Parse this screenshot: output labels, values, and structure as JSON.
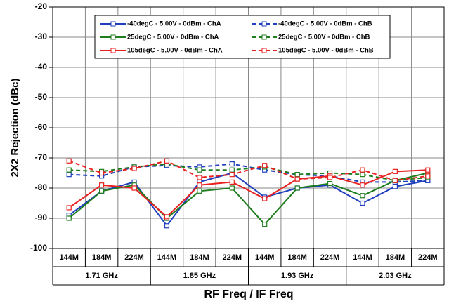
{
  "chart_data": {
    "type": "line",
    "y_label": "2X2 Rejection (dBc)",
    "x_label": "RF Freq / IF Freq",
    "categories": [
      "144M",
      "184M",
      "224M",
      "144M",
      "184M",
      "224M",
      "144M",
      "184M",
      "224M",
      "144M",
      "184M",
      "224M"
    ],
    "category_groups": [
      "1.71 GHz",
      "1.85 GHz",
      "1.93 GHz",
      "2.03 GHz"
    ],
    "ylim": [
      -100,
      -20
    ],
    "yticks": [
      -100,
      -90,
      -80,
      -70,
      -60,
      -50,
      -40,
      -30,
      -20
    ],
    "grid": true,
    "legend": "top",
    "series": [
      {
        "name": "-40degC - 5.00V - 0dBm - ChA",
        "color": "#1f3fbf",
        "dashed": false,
        "values": [
          -89,
          -81,
          -78,
          -92.5,
          -78,
          -75,
          -83,
          -80,
          -79,
          -85,
          -79.5,
          -77.5
        ]
      },
      {
        "name": "-40degC - 5.00V - 0dBm - ChB",
        "color": "#1f3fbf",
        "dashed": true,
        "values": [
          -75.5,
          -76,
          -73,
          -72.5,
          -73,
          -72,
          -74,
          -75.5,
          -76,
          -78,
          -78,
          -77.5
        ]
      },
      {
        "name": "25degC - 5.00V - 0dBm - ChA",
        "color": "#1e7d1e",
        "dashed": false,
        "values": [
          -90,
          -81,
          -79,
          -90,
          -81,
          -80,
          -92,
          -80,
          -78.5,
          -82.5,
          -77.5,
          -75
        ]
      },
      {
        "name": "25degC - 5.00V - 0dBm - ChB",
        "color": "#1e7d1e",
        "dashed": true,
        "values": [
          -74,
          -74.5,
          -73,
          -72,
          -74,
          -74,
          -73,
          -75.5,
          -75,
          -75.5,
          -77.5,
          -76.5
        ]
      },
      {
        "name": "105degC - 5.00V - 0dBm - ChA",
        "color": "#e82020",
        "dashed": false,
        "values": [
          -86.5,
          -79,
          -80,
          -89.5,
          -79,
          -78,
          -83.5,
          -77,
          -76,
          -79,
          -74.5,
          -74
        ]
      },
      {
        "name": "105degC - 5.00V - 0dBm - ChB",
        "color": "#e82020",
        "dashed": true,
        "values": [
          -71,
          -75,
          -73.5,
          -71,
          -76.5,
          -75.5,
          -72.5,
          -77,
          -76.5,
          -74,
          -77.5,
          -76
        ]
      }
    ]
  }
}
